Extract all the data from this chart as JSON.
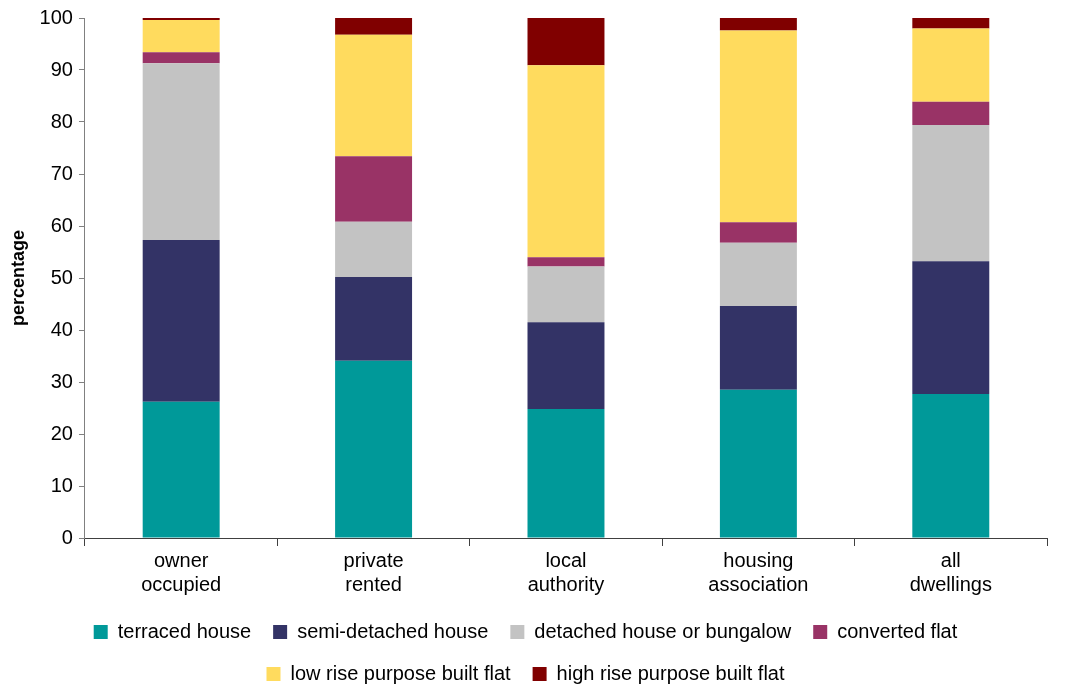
{
  "chart_data": {
    "type": "bar",
    "stacked": true,
    "ylabel": "percentage",
    "categories": [
      "owner occupied",
      "private rented",
      "local authority",
      "housing association",
      "all dwellings"
    ],
    "series": [
      {
        "name": "terraced house",
        "color": "#009999",
        "values": [
          26.2,
          34.1,
          24.8,
          28.5,
          27.7
        ]
      },
      {
        "name": "semi-detached house",
        "color": "#333366",
        "values": [
          31.1,
          16.1,
          16.7,
          16.1,
          25.5
        ]
      },
      {
        "name": "detached house or bungalow",
        "color": "#c3c3c3",
        "values": [
          34.0,
          10.6,
          10.7,
          12.2,
          26.2
        ]
      },
      {
        "name": "converted flat",
        "color": "#993366",
        "values": [
          2.1,
          12.6,
          1.8,
          3.9,
          4.5
        ]
      },
      {
        "name": "low rise purpose built flat",
        "color": "#ffdb5e",
        "values": [
          6.2,
          23.4,
          36.9,
          36.9,
          14.1
        ]
      },
      {
        "name": "high rise purpose built flat",
        "color": "#800000",
        "values": [
          0.4,
          3.2,
          9.1,
          2.4,
          2.0
        ]
      }
    ],
    "ylim": [
      0,
      100
    ],
    "yticks": [
      0,
      10,
      20,
      30,
      40,
      50,
      60,
      70,
      80,
      90,
      100
    ],
    "grid": false,
    "legend": "bottom"
  }
}
